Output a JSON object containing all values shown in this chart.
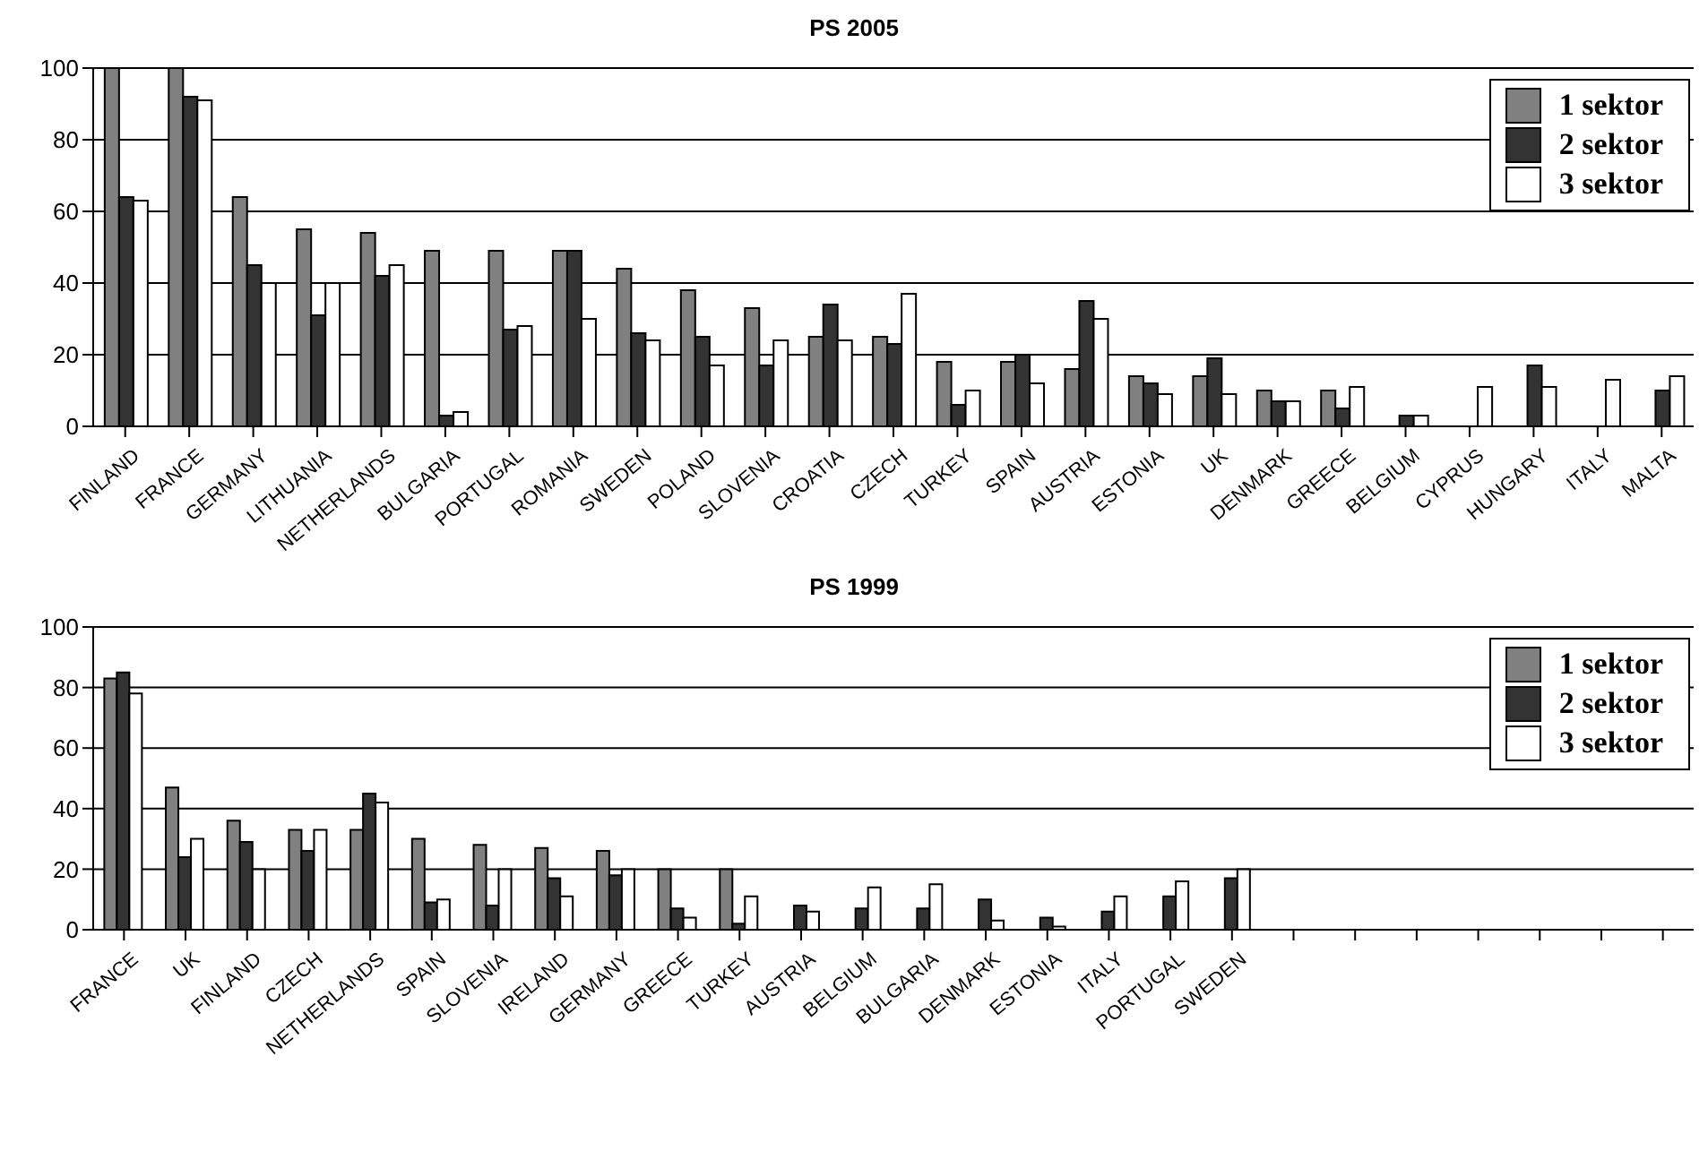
{
  "chart_data": [
    {
      "type": "bar",
      "title": "PS 2005",
      "categories": [
        "FINLAND",
        "FRANCE",
        "GERMANY",
        "LITHUANIA",
        "NETHERLANDS",
        "BULGARIA",
        "PORTUGAL",
        "ROMANIA",
        "SWEDEN",
        "POLAND",
        "SLOVENIA",
        "CROATIA",
        "CZECH",
        "TURKEY",
        "SPAIN",
        "AUSTRIA",
        "ESTONIA",
        "UK",
        "DENMARK",
        "GREECE",
        "BELGIUM",
        "CYPRUS",
        "HUNGARY",
        "ITALY",
        "MALTA"
      ],
      "series": [
        {
          "name": "1 sektor",
          "color": "#808080",
          "values": [
            100,
            100,
            64,
            55,
            54,
            49,
            49,
            49,
            44,
            38,
            33,
            25,
            25,
            18,
            18,
            16,
            14,
            14,
            10,
            10,
            null,
            null,
            null,
            null,
            null
          ]
        },
        {
          "name": "2 sektor",
          "color": "#333333",
          "values": [
            64,
            92,
            45,
            31,
            42,
            3,
            27,
            49,
            26,
            25,
            17,
            34,
            23,
            6,
            20,
            35,
            12,
            19,
            7,
            5,
            3,
            null,
            17,
            null,
            10
          ]
        },
        {
          "name": "3 sektor",
          "color": "#ffffff",
          "values": [
            63,
            91,
            40,
            40,
            45,
            4,
            28,
            30,
            24,
            17,
            24,
            24,
            37,
            10,
            12,
            30,
            9,
            9,
            7,
            11,
            3,
            11,
            11,
            13,
            14
          ]
        }
      ],
      "ylim": [
        0,
        100
      ],
      "yticks": [
        0,
        20,
        40,
        60,
        80,
        100
      ],
      "grid": "y",
      "legend": "top right"
    },
    {
      "type": "bar",
      "title": "PS 1999",
      "categories": [
        "FRANCE",
        "UK",
        "FINLAND",
        "CZECH",
        "NETHERLANDS",
        "SPAIN",
        "SLOVENIA",
        "IRELAND",
        "GERMANY",
        "GREECE",
        "TURKEY",
        "AUSTRIA",
        "BELGIUM",
        "BULGARIA",
        "DENMARK",
        "ESTONIA",
        "ITALY",
        "PORTUGAL",
        "SWEDEN",
        null,
        null,
        null,
        null,
        null,
        null,
        null
      ],
      "series": [
        {
          "name": "1 sektor",
          "color": "#808080",
          "values": [
            83,
            47,
            36,
            33,
            33,
            30,
            28,
            27,
            26,
            20,
            20,
            null,
            null,
            null,
            null,
            null,
            null,
            null,
            null,
            null,
            null,
            null,
            null,
            null,
            null,
            null
          ]
        },
        {
          "name": "2 sektor",
          "color": "#333333",
          "values": [
            85,
            24,
            29,
            26,
            45,
            9,
            8,
            17,
            18,
            7,
            2,
            8,
            7,
            7,
            10,
            4,
            6,
            11,
            17,
            null,
            null,
            null,
            null,
            null,
            null,
            null
          ]
        },
        {
          "name": "3 sektor",
          "color": "#ffffff",
          "values": [
            78,
            30,
            20,
            33,
            42,
            10,
            20,
            11,
            20,
            4,
            11,
            6,
            14,
            15,
            3,
            1,
            11,
            16,
            20,
            null,
            null,
            null,
            null,
            null,
            null,
            null
          ]
        }
      ],
      "ylim": [
        0,
        100
      ],
      "yticks": [
        0,
        20,
        40,
        60,
        80,
        100
      ],
      "grid": "y",
      "legend": "top right"
    }
  ]
}
